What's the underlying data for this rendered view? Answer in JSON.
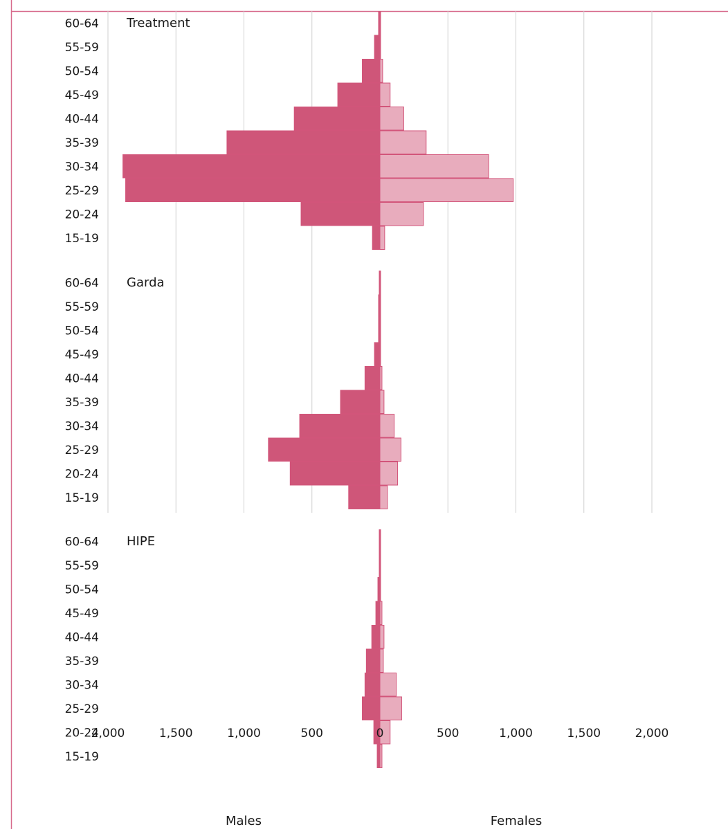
{
  "chart_data": {
    "type": "bar",
    "orientation": "horizontal",
    "layout": "population-pyramid",
    "categories": [
      "15-19",
      "20-24",
      "25-29",
      "30-34",
      "35-39",
      "40-44",
      "45-49",
      "50-54",
      "55-59",
      "60-64"
    ],
    "xlim": [
      -2000,
      2000
    ],
    "x_ticks": [
      -2000,
      -1500,
      -1000,
      -500,
      0,
      500,
      1000,
      1500,
      2000
    ],
    "x_tick_labels": [
      "2,000",
      "1,500",
      "1,000",
      "500",
      "0",
      "500",
      "1,000",
      "1,500",
      "2,000"
    ],
    "grid": "vertical",
    "males_label": "Males",
    "females_label": "Females",
    "colors": {
      "males": "#cf5679",
      "females": "#e8acbd",
      "bar_edge": "#d2557a",
      "frame": "#d76a8b",
      "grid": "#cfcfcf"
    },
    "panels": [
      {
        "label": "Treatment",
        "males": [
          55,
          580,
          1870,
          1890,
          1125,
          630,
          310,
          130,
          40,
          10
        ],
        "females": [
          35,
          320,
          980,
          800,
          340,
          175,
          75,
          20,
          5,
          5
        ]
      },
      {
        "label": "Garda",
        "males": [
          230,
          660,
          820,
          590,
          290,
          110,
          40,
          10,
          10,
          5
        ],
        "females": [
          55,
          130,
          155,
          105,
          30,
          15,
          5,
          5,
          5,
          5
        ]
      },
      {
        "label": "HIPE",
        "males": [
          20,
          45,
          130,
          110,
          100,
          60,
          30,
          15,
          5,
          5
        ],
        "females": [
          15,
          75,
          160,
          120,
          25,
          30,
          15,
          5,
          5,
          5
        ]
      }
    ]
  }
}
